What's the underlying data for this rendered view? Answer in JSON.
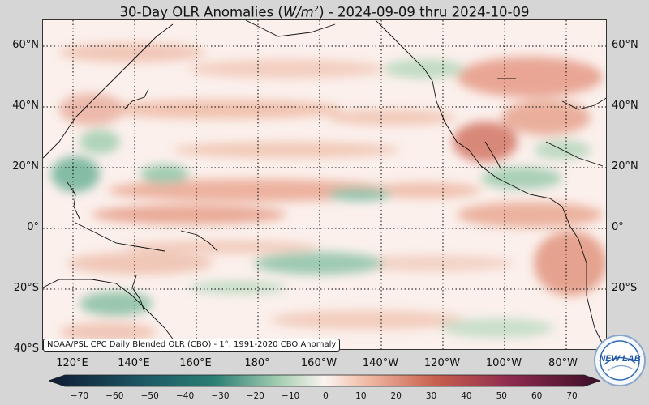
{
  "title": {
    "prefix": "30-Day OLR Anomalies (",
    "unit_base": "W/m",
    "unit_exp": "2",
    "suffix": ") - 2024-09-09 thru 2024-10-09"
  },
  "map": {
    "lat_labels": [
      "60°N",
      "40°N",
      "20°N",
      "0°",
      "20°S",
      "40°S"
    ],
    "lon_labels": [
      "120°E",
      "140°E",
      "160°E",
      "180°",
      "160°W",
      "140°W",
      "120°W",
      "100°W",
      "80°W"
    ],
    "credit": "NOAA/PSL CPC Daily Blended OLR (CBO) - 1°, 1991-2020 CBO Anomaly",
    "grid": "dotted"
  },
  "colorbar": {
    "ticks": [
      "−70",
      "−60",
      "−50",
      "−40",
      "−30",
      "−20",
      "−10",
      "0",
      "10",
      "20",
      "30",
      "40",
      "50",
      "60",
      "70"
    ],
    "colors": {
      "neg_extreme": "#0f1a33",
      "neg_strong": "#2a7f73",
      "neg_weak": "#a7cfb4",
      "neutral": "#fbf4f0",
      "pos_weak": "#f0b8a2",
      "pos_strong": "#c8604e",
      "pos_extreme": "#3a0e28"
    }
  },
  "logo": {
    "text": "NEW LAB"
  }
}
